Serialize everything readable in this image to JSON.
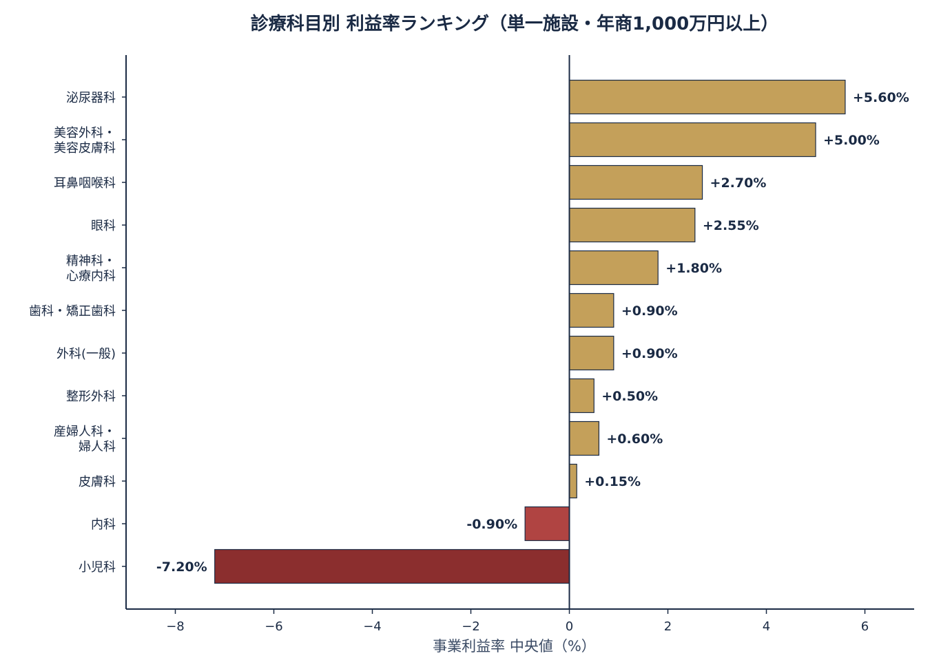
{
  "chart_data": {
    "type": "bar",
    "orientation": "horizontal",
    "title": "診療科目別 利益率ランキング（単一施設・年商1,000万円以上）",
    "xlabel": "事業利益率 中央値（%）",
    "ylabel": "",
    "xlim": [
      -9,
      7
    ],
    "xticks": [
      -8,
      -6,
      -4,
      -2,
      0,
      2,
      4,
      6
    ],
    "xtick_labels": [
      "−8",
      "−6",
      "−4",
      "−2",
      "0",
      "2",
      "4",
      "6"
    ],
    "grid": false,
    "legend": "none",
    "categories": [
      [
        "泌尿器科"
      ],
      [
        "美容外科・",
        "美容皮膚科"
      ],
      [
        "耳鼻咽喉科"
      ],
      [
        "眼科"
      ],
      [
        "精神科・",
        "心療内科"
      ],
      [
        "歯科・矯正歯科"
      ],
      [
        "外科(一般)"
      ],
      [
        "整形外科"
      ],
      [
        "産婦人科・",
        "婦人科"
      ],
      [
        "皮膚科"
      ],
      [
        "内科"
      ],
      [
        "小児科"
      ]
    ],
    "values": [
      5.6,
      5.0,
      2.7,
      2.55,
      1.8,
      0.9,
      0.9,
      0.5,
      0.6,
      0.15,
      -0.9,
      -7.2
    ],
    "value_labels": [
      "+5.60%",
      "+5.00%",
      "+2.70%",
      "+2.55%",
      "+1.80%",
      "+0.90%",
      "+0.90%",
      "+0.50%",
      "+0.60%",
      "+0.15%",
      "-0.90%",
      "-7.20%"
    ],
    "colors": {
      "positive": "#c4a05a",
      "negative_small": "#b04442",
      "negative_large": "#8b2e2e",
      "edge": "#1a2a44",
      "zero_line": "#1a2a44"
    }
  }
}
